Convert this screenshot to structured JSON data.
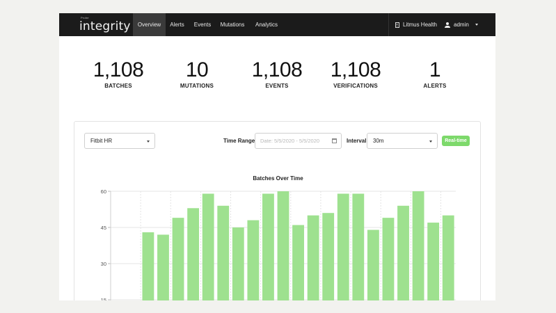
{
  "navbar": {
    "brand_small": "Probe",
    "brand_name": "integrity",
    "brand_tm": "™",
    "items": [
      {
        "label": "Overview",
        "active": true
      },
      {
        "label": "Alerts",
        "active": false
      },
      {
        "label": "Events",
        "active": false
      },
      {
        "label": "Mutations",
        "active": false
      },
      {
        "label": "Analytics",
        "active": false
      }
    ],
    "org": {
      "icon": "building-icon",
      "label": "Litmus Health"
    },
    "user": {
      "icon": "user-icon",
      "label": "admin"
    }
  },
  "stats": [
    {
      "value": "1,108",
      "label": "BATCHES"
    },
    {
      "value": "10",
      "label": "MUTATIONS"
    },
    {
      "value": "1,108",
      "label": "EVENTS"
    },
    {
      "value": "1,108",
      "label": "VERIFICATIONS"
    },
    {
      "value": "1",
      "label": "ALERTS"
    }
  ],
  "controls": {
    "device_select": "Fitbit HR",
    "time_range_label": "Time Range",
    "date_placeholder": "Date: 5/5/2020 - 5/5/2020",
    "interval_label": "Interval",
    "interval_select": "30m",
    "realtime_button": "Real-time"
  },
  "colors": {
    "accent": "#7dd96b",
    "bar": "#9ee18f",
    "navbar": "#1b1b1b"
  },
  "chart_data": {
    "type": "bar",
    "title": "Batches Over Time",
    "xlabel": "",
    "ylabel": "",
    "yticks": [
      15,
      30,
      45,
      60
    ],
    "values": [
      null,
      null,
      43,
      42,
      49,
      53,
      59,
      54,
      45,
      48,
      59,
      60,
      46,
      50,
      51,
      59,
      59,
      44,
      49,
      54,
      60,
      47,
      50
    ],
    "grid": true
  }
}
